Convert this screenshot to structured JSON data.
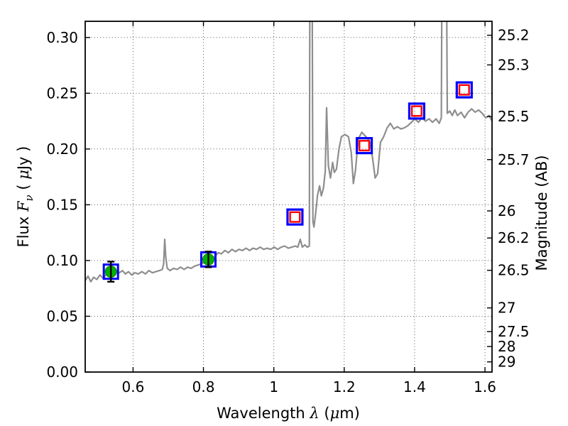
{
  "figure": {
    "xlabel_parts": [
      {
        "t": "Wavelength  ",
        "style": "plain"
      },
      {
        "t": "λ",
        "style": "mathit"
      },
      {
        "t": " (",
        "style": "plain"
      },
      {
        "t": "μ",
        "style": "mathit"
      },
      {
        "t": "m)",
        "style": "plain"
      }
    ],
    "ylabel_parts": [
      {
        "t": "Flux  ",
        "style": "plain"
      },
      {
        "t": "F",
        "style": "mathit"
      },
      {
        "t": "ν",
        "style": "mathit-sub"
      },
      {
        "t": "  ( ",
        "style": "plain"
      },
      {
        "t": "μ",
        "style": "mathit"
      },
      {
        "t": "Jy )",
        "style": "plain"
      }
    ]
  },
  "chart_data": {
    "type": "line",
    "title": "",
    "xlabel": "Wavelength λ (μm)",
    "ylabel": "Flux Fν ( μJy )",
    "y2label": "Magnitude (AB)",
    "xlim": [
      0.464,
      1.62
    ],
    "ylim": [
      0,
      0.3145
    ],
    "grid": true,
    "grid_style": "dotted",
    "xticks": {
      "values": [
        0.6,
        0.8,
        1.0,
        1.2,
        1.4,
        1.6
      ],
      "labels": [
        "0.6",
        "0.8",
        "1",
        "1.2",
        "1.4",
        "1.6"
      ]
    },
    "yticks": {
      "values": [
        0.0,
        0.05,
        0.1,
        0.15,
        0.2,
        0.25,
        0.3
      ],
      "labels": [
        "0.00",
        "0.05",
        "0.10",
        "0.15",
        "0.20",
        "0.25",
        "0.30"
      ]
    },
    "y2ticks": [
      {
        "label": "25.2",
        "flux": 0.302
      },
      {
        "label": "25.3",
        "flux": 0.2754
      },
      {
        "label": "25.5",
        "flux": 0.2291
      },
      {
        "label": "25.7",
        "flux": 0.1905
      },
      {
        "label": "26",
        "flux": 0.1445
      },
      {
        "label": "26.2",
        "flux": 0.1202
      },
      {
        "label": "26.5",
        "flux": 0.0912
      },
      {
        "label": "27",
        "flux": 0.0575
      },
      {
        "label": "27.5",
        "flux": 0.0363
      },
      {
        "label": "28",
        "flux": 0.0229
      },
      {
        "label": "29",
        "flux": 0.00912
      }
    ],
    "series": [
      {
        "name": "spectrum",
        "type": "line",
        "color": "#8e8e8e",
        "points": [
          [
            0.464,
            0.082
          ],
          [
            0.472,
            0.086
          ],
          [
            0.48,
            0.081
          ],
          [
            0.488,
            0.085
          ],
          [
            0.497,
            0.083
          ],
          [
            0.506,
            0.087
          ],
          [
            0.515,
            0.084
          ],
          [
            0.525,
            0.088
          ],
          [
            0.531,
            0.086
          ],
          [
            0.537,
            0.09
          ],
          [
            0.545,
            0.087
          ],
          [
            0.553,
            0.091
          ],
          [
            0.561,
            0.089
          ],
          [
            0.57,
            0.091
          ],
          [
            0.578,
            0.088
          ],
          [
            0.587,
            0.09
          ],
          [
            0.596,
            0.087
          ],
          [
            0.605,
            0.089
          ],
          [
            0.615,
            0.088
          ],
          [
            0.625,
            0.09
          ],
          [
            0.635,
            0.088
          ],
          [
            0.645,
            0.091
          ],
          [
            0.655,
            0.089
          ],
          [
            0.665,
            0.09
          ],
          [
            0.675,
            0.091
          ],
          [
            0.683,
            0.092
          ],
          [
            0.687,
            0.097
          ],
          [
            0.69,
            0.119
          ],
          [
            0.693,
            0.103
          ],
          [
            0.697,
            0.093
          ],
          [
            0.705,
            0.091
          ],
          [
            0.715,
            0.093
          ],
          [
            0.725,
            0.092
          ],
          [
            0.735,
            0.094
          ],
          [
            0.745,
            0.092
          ],
          [
            0.755,
            0.094
          ],
          [
            0.765,
            0.093
          ],
          [
            0.775,
            0.095
          ],
          [
            0.785,
            0.096
          ],
          [
            0.795,
            0.097
          ],
          [
            0.806,
            0.1
          ],
          [
            0.815,
            0.102
          ],
          [
            0.824,
            0.1
          ],
          [
            0.833,
            0.104
          ],
          [
            0.842,
            0.107
          ],
          [
            0.851,
            0.106
          ],
          [
            0.861,
            0.109
          ],
          [
            0.871,
            0.107
          ],
          [
            0.881,
            0.11
          ],
          [
            0.891,
            0.108
          ],
          [
            0.901,
            0.11
          ],
          [
            0.911,
            0.109
          ],
          [
            0.921,
            0.111
          ],
          [
            0.931,
            0.109
          ],
          [
            0.941,
            0.111
          ],
          [
            0.951,
            0.11
          ],
          [
            0.961,
            0.112
          ],
          [
            0.971,
            0.11
          ],
          [
            0.981,
            0.111
          ],
          [
            0.991,
            0.11
          ],
          [
            1.001,
            0.112
          ],
          [
            1.011,
            0.11
          ],
          [
            1.021,
            0.112
          ],
          [
            1.031,
            0.113
          ],
          [
            1.041,
            0.111
          ],
          [
            1.051,
            0.112
          ],
          [
            1.061,
            0.113
          ],
          [
            1.068,
            0.112
          ],
          [
            1.075,
            0.119
          ],
          [
            1.081,
            0.112
          ],
          [
            1.088,
            0.114
          ],
          [
            1.095,
            0.112
          ],
          [
            1.101,
            0.113
          ],
          [
            1.103,
            0.45
          ],
          [
            1.108,
            0.45
          ],
          [
            1.111,
            0.135
          ],
          [
            1.114,
            0.13
          ],
          [
            1.119,
            0.143
          ],
          [
            1.124,
            0.158
          ],
          [
            1.13,
            0.167
          ],
          [
            1.135,
            0.158
          ],
          [
            1.141,
            0.165
          ],
          [
            1.146,
            0.18
          ],
          [
            1.15,
            0.237
          ],
          [
            1.155,
            0.185
          ],
          [
            1.161,
            0.174
          ],
          [
            1.167,
            0.188
          ],
          [
            1.172,
            0.179
          ],
          [
            1.178,
            0.182
          ],
          [
            1.185,
            0.2
          ],
          [
            1.192,
            0.211
          ],
          [
            1.202,
            0.213
          ],
          [
            1.212,
            0.211
          ],
          [
            1.22,
            0.197
          ],
          [
            1.226,
            0.169
          ],
          [
            1.232,
            0.181
          ],
          [
            1.24,
            0.209
          ],
          [
            1.25,
            0.215
          ],
          [
            1.262,
            0.211
          ],
          [
            1.272,
            0.207
          ],
          [
            1.28,
            0.193
          ],
          [
            1.288,
            0.174
          ],
          [
            1.295,
            0.178
          ],
          [
            1.303,
            0.206
          ],
          [
            1.312,
            0.211
          ],
          [
            1.322,
            0.219
          ],
          [
            1.331,
            0.223
          ],
          [
            1.341,
            0.218
          ],
          [
            1.351,
            0.22
          ],
          [
            1.361,
            0.218
          ],
          [
            1.371,
            0.219
          ],
          [
            1.381,
            0.221
          ],
          [
            1.391,
            0.224
          ],
          [
            1.401,
            0.227
          ],
          [
            1.411,
            0.224
          ],
          [
            1.421,
            0.228
          ],
          [
            1.431,
            0.225
          ],
          [
            1.441,
            0.227
          ],
          [
            1.451,
            0.224
          ],
          [
            1.461,
            0.227
          ],
          [
            1.47,
            0.223
          ],
          [
            1.476,
            0.228
          ],
          [
            1.479,
            0.45
          ],
          [
            1.489,
            0.45
          ],
          [
            1.493,
            0.232
          ],
          [
            1.5,
            0.234
          ],
          [
            1.507,
            0.23
          ],
          [
            1.514,
            0.235
          ],
          [
            1.522,
            0.23
          ],
          [
            1.532,
            0.233
          ],
          [
            1.542,
            0.228
          ],
          [
            1.552,
            0.233
          ],
          [
            1.562,
            0.236
          ],
          [
            1.572,
            0.233
          ],
          [
            1.582,
            0.235
          ],
          [
            1.592,
            0.232
          ],
          [
            1.602,
            0.228
          ],
          [
            1.612,
            0.23
          ],
          [
            1.62,
            0.225
          ]
        ]
      },
      {
        "name": "observed_photometry",
        "type": "scatter",
        "marker": "green-circle-in-blue-square-with-errorbar",
        "square_color": "#0000ff",
        "circle_color": "#00b000",
        "errorbar_color": "#000000",
        "points": [
          {
            "x": 0.537,
            "y": 0.09,
            "yerr": 0.009
          },
          {
            "x": 0.814,
            "y": 0.101,
            "yerr": 0.007
          }
        ]
      },
      {
        "name": "model_photometry",
        "type": "scatter",
        "marker": "red-square-in-blue-square",
        "outer_color": "#0000ff",
        "inner_color": "#ff0000",
        "points": [
          {
            "x": 1.06,
            "y": 0.139
          },
          {
            "x": 1.257,
            "y": 0.203
          },
          {
            "x": 1.406,
            "y": 0.234
          },
          {
            "x": 1.541,
            "y": 0.253
          }
        ]
      }
    ]
  }
}
